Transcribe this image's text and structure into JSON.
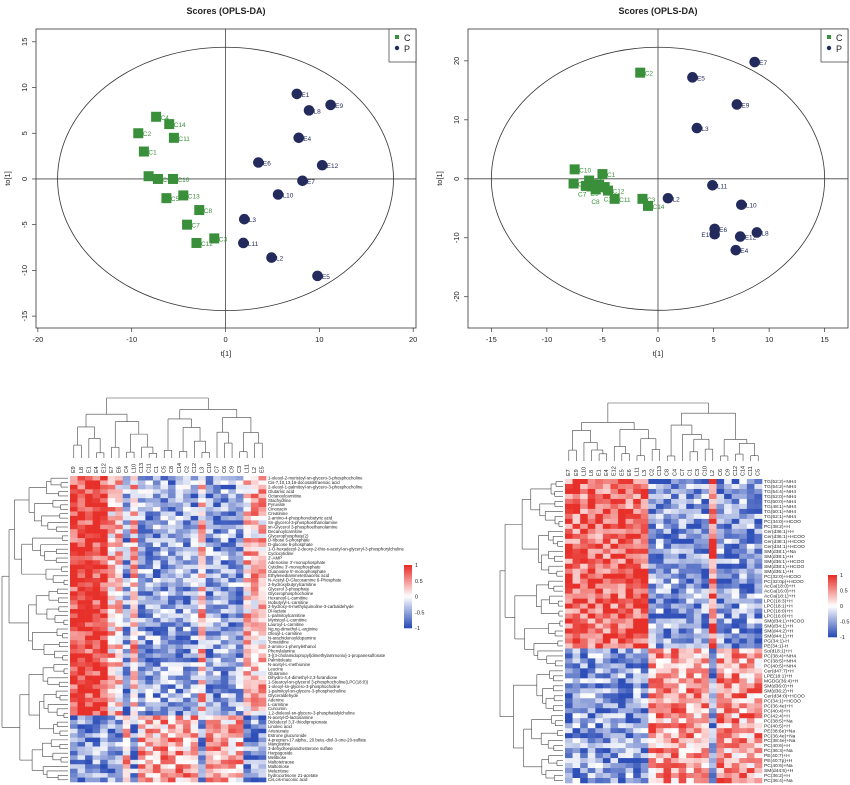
{
  "colors": {
    "C": "#3a8f3a",
    "P": "#232a5c",
    "heat_low": "#2e4fb8",
    "heat_mid": "#ffffff",
    "heat_high": "#e8302a",
    "axis": "#333333"
  },
  "chart_data": [
    {
      "type": "scatter",
      "title": "Scores (OPLS-DA)",
      "xlabel": "t[1]",
      "ylabel": "to[1]",
      "xlim": [
        -20.2,
        20.3
      ],
      "ylim": [
        -16.3,
        16.4
      ],
      "xticks": [
        "-20",
        "-10",
        "0",
        "10",
        "20"
      ],
      "xtick_values": [
        -20,
        -10,
        0,
        10,
        20
      ],
      "yticks": [
        "-15",
        "-10",
        "-5",
        "0",
        "5",
        "10",
        "15"
      ],
      "ytick_values": [
        -15,
        -10,
        -5,
        0,
        5,
        10,
        15
      ],
      "ellipse": {
        "rx": 17.9,
        "ry": 14.4
      },
      "legend": {
        "position": "top-right",
        "entries": [
          "C",
          "P"
        ]
      },
      "series": [
        {
          "name": "C",
          "marker": "square",
          "points": [
            {
              "label": "C4",
              "x": -7.4,
              "y": 6.8
            },
            {
              "label": "C14",
              "x": -6.0,
              "y": 6.0
            },
            {
              "label": "C2",
              "x": -9.3,
              "y": 5.0
            },
            {
              "label": "C11",
              "x": -5.5,
              "y": 4.5
            },
            {
              "label": "C1",
              "x": -8.7,
              "y": 3.0
            },
            {
              "label": "C6",
              "x": -8.2,
              "y": 0.3
            },
            {
              "label": "C9",
              "x": -7.2,
              "y": 0.0
            },
            {
              "label": "C10",
              "x": -5.6,
              "y": 0.0
            },
            {
              "label": "C13",
              "x": -4.5,
              "y": -1.8
            },
            {
              "label": "C5",
              "x": -6.3,
              "y": -2.1
            },
            {
              "label": "C8",
              "x": -2.8,
              "y": -3.4
            },
            {
              "label": "C7",
              "x": -4.1,
              "y": -5.0
            },
            {
              "label": "C3",
              "x": -1.2,
              "y": -6.5
            },
            {
              "label": "C12",
              "x": -3.1,
              "y": -7.0
            }
          ]
        },
        {
          "name": "P",
          "marker": "circle",
          "points": [
            {
              "label": "E1",
              "x": 7.6,
              "y": 9.3
            },
            {
              "label": "E9",
              "x": 11.2,
              "y": 8.1
            },
            {
              "label": "L8",
              "x": 8.9,
              "y": 7.5
            },
            {
              "label": "E4",
              "x": 7.8,
              "y": 4.5
            },
            {
              "label": "E6",
              "x": 3.5,
              "y": 1.8
            },
            {
              "label": "E12",
              "x": 10.3,
              "y": 1.5
            },
            {
              "label": "E7",
              "x": 8.2,
              "y": -0.2
            },
            {
              "label": "L10",
              "x": 5.6,
              "y": -1.7
            },
            {
              "label": "L3",
              "x": 2.0,
              "y": -4.4
            },
            {
              "label": "L11",
              "x": 1.9,
              "y": -7.0
            },
            {
              "label": "L2",
              "x": 4.9,
              "y": -8.6
            },
            {
              "label": "E5",
              "x": 9.8,
              "y": -10.6
            }
          ]
        }
      ]
    },
    {
      "type": "scatter",
      "title": "Scores (OPLS-DA)",
      "xlabel": "t[1]",
      "ylabel": "to[1]",
      "xlim": [
        -17.1,
        17.1
      ],
      "ylim": [
        -25.3,
        25.4
      ],
      "xticks": [
        "-15",
        "-10",
        "-5",
        "0",
        "5",
        "10",
        "15"
      ],
      "xtick_values": [
        -15,
        -10,
        -5,
        0,
        5,
        10,
        15
      ],
      "yticks": [
        "-20",
        "-10",
        "0",
        "10",
        "20"
      ],
      "ytick_values": [
        -20,
        -10,
        0,
        10,
        20
      ],
      "ellipse": {
        "rx": 15.0,
        "ry": 22.3
      },
      "legend": {
        "position": "top-right",
        "entries": [
          "C",
          "P"
        ]
      },
      "series": [
        {
          "name": "C",
          "marker": "square",
          "points": [
            {
              "label": "C2",
              "x": -1.6,
              "y": 18.0
            },
            {
              "label": "C10",
              "x": -7.5,
              "y": 1.6
            },
            {
              "label": "C1",
              "x": -5.0,
              "y": 0.8
            },
            {
              "label": "C5",
              "x": -7.6,
              "y": -0.8
            },
            {
              "label": "C4",
              "x": -6.2,
              "y": -0.3
            },
            {
              "label": "C9",
              "x": -6.5,
              "y": -1.2
            },
            {
              "label": "C7",
              "x": -6.0,
              "y": -1.3
            },
            {
              "label": "C6",
              "x": -5.6,
              "y": -1.8
            },
            {
              "label": "C13",
              "x": -5.3,
              "y": -1.0
            },
            {
              "label": "C12",
              "x": -4.5,
              "y": -2.0
            },
            {
              "label": "C11",
              "x": -3.9,
              "y": -3.4
            },
            {
              "label": "C3",
              "x": -1.4,
              "y": -3.4
            },
            {
              "label": "C14",
              "x": -0.9,
              "y": -4.6
            },
            {
              "label": "C8",
              "x": -4.8,
              "y": -1.4
            }
          ]
        },
        {
          "name": "P",
          "marker": "circle",
          "points": [
            {
              "label": "E7",
              "x": 8.7,
              "y": 19.8
            },
            {
              "label": "E5",
              "x": 3.1,
              "y": 17.2
            },
            {
              "label": "E9",
              "x": 7.1,
              "y": 12.6
            },
            {
              "label": "L3",
              "x": 3.5,
              "y": 8.6
            },
            {
              "label": "L11",
              "x": 4.9,
              "y": -1.1
            },
            {
              "label": "L2",
              "x": 0.9,
              "y": -3.3
            },
            {
              "label": "L10",
              "x": 7.5,
              "y": -4.4
            },
            {
              "label": "E6",
              "x": 5.1,
              "y": -8.5
            },
            {
              "label": "E1",
              "x": 5.1,
              "y": -9.4
            },
            {
              "label": "E12",
              "x": 7.4,
              "y": -9.8
            },
            {
              "label": "L8",
              "x": 8.9,
              "y": -9.1
            },
            {
              "label": "E4",
              "x": 7.0,
              "y": -12.1
            }
          ]
        }
      ]
    },
    {
      "type": "heatmap",
      "value_range": [
        -1,
        1
      ],
      "legend_ticks": [
        "1",
        "0.5",
        "0",
        "-0.5",
        "-1"
      ],
      "legend_tick_values": [
        1,
        0.5,
        0,
        -0.5,
        -1
      ],
      "columns": [
        "E9",
        "L8",
        "E1",
        "E4",
        "E12",
        "E7",
        "E6",
        "C4",
        "L10",
        "C13",
        "C11",
        "C1",
        "C5",
        "C8",
        "C14",
        "C2",
        "C12",
        "L3",
        "C10",
        "C7",
        "C6",
        "C9",
        "C3",
        "L11",
        "L2",
        "E5"
      ],
      "rows": [
        "1-oleoyl-2-myristoyl-sn-glycero-3-phosphocholine",
        "Cis-7,10,13,16-docosatetraenoic acid",
        "2-oleoyl-1-palmitoyl-sn-glycero-3-phosphocholine",
        "Glutamic acid",
        "Octanoylcarnitine",
        "Stachydrine",
        "Pyruvate",
        "Cinoxacin",
        "Creatinine",
        "2-amino-4-phosphonobutyric acid",
        "Sn-glycerol-3-phosphoethanolamine",
        "sn-Glycerol 3-phosphoethanolamine",
        "Decanoylcarnitine",
        "Glycerophosphate(2)",
        "D-ribose 5-phosphate",
        "D-glucose 6-phosphate",
        "1-O-hexadecyl-2-deoxy-2-thio-s-acetyl-sn-glyceryl-3-phosphorylcholine",
        "Cyclocytidine",
        "2'-AMP",
        "Adenosine 3'-monophosphate",
        "Cytidine 3'-monophosphate",
        "Guanosine 5'-monophosphate",
        "Ethylenediaminetetraacetic acid",
        "N-Acetyl-D-Glucosamine 6-Phosphate",
        "2-hydroxybutyrylcarnitine",
        "Glycerol 3-phosphate",
        "Glycerophosphocholine",
        "Hexanoyl-L-carnitine",
        "Isobutyryl-L-carnitine",
        "2-hydroxy-6-methylquinoline-3-carbaldehyde",
        "Dl-lactate",
        "L-palmitoylcarnitine",
        "Myristoyl-L-carnitine",
        "Lauroyl-L-carnitine",
        "Ng,ng-dimethyl-L-arginine",
        "Oleoyl-L-carnitine",
        "N-arachidonoyldopamine",
        "Tomatidine",
        "2-amino-1-phenylethanol",
        "Phenylalanine",
        "3-[(3-cholamidopropyl)dimethylammonio]-1-propanesulfonate",
        "Palmitoleate",
        "N-acetyl-L-methionine",
        "Leucine",
        "Glutamine",
        "Dihydro-4,4-dimethyl-2,3-furandione",
        "1-Stearoyl-sn-glycerol 3-phosphocholine(LPC(18:0))",
        "1-oleoyl-sn-glycero-3-phosphocholine",
        "1-palmitoyl-sn-glycero-3-phosphocholine",
        "Glyceraldehyde",
        "Adenine",
        "L-carnitine",
        "Curcumin",
        "1,2-dioleoyl-sn-glycero-3-phosphatidylcholine",
        "N-acetyl-D-lactosamine",
        "Didodecyl 3,3'-thiodipropionate",
        "Linoleic acid",
        "Artesunate",
        "Estrone glucuronide",
        "4-pregnen-17.alpha., 20.beta.-diol-3-one-20-sulfate",
        "Mangostine",
        "3-dehydroepiandrosterone sulfate",
        "Harpagoside",
        "Melibiose",
        "Maltotetraose",
        "Maltotriose",
        "Melezitose",
        "hydrocortisone 21-acetate",
        "Cis,cis-muconic acid"
      ]
    },
    {
      "type": "heatmap",
      "value_range": [
        -1,
        1
      ],
      "legend_ticks": [
        "1",
        "0.5",
        "0",
        "-0.5",
        "-1"
      ],
      "legend_tick_values": [
        1,
        0.5,
        0,
        -0.5,
        -1
      ],
      "columns": [
        "E7",
        "E9",
        "L10",
        "L8",
        "E1",
        "E4",
        "E12",
        "E5",
        "E6",
        "L11",
        "L3",
        "C2",
        "C13",
        "C8",
        "C4",
        "C7",
        "C1",
        "C3",
        "C10",
        "L2",
        "C6",
        "C9",
        "C12",
        "C14",
        "C11",
        "C5"
      ],
      "rows": [
        "TG(52:2)+NH4",
        "TG(54:2)+NH4",
        "TG(54:4)+NH4",
        "TG(52:0)+NH4",
        "TG(50:0)+NH4",
        "TG(48:1)+NH4",
        "TG(50:1)+NH4",
        "TG(52:1)+NH4",
        "PC(34:0)+HCOO",
        "PC(38:2)+H",
        "Cer(d36:1)+H",
        "Cer(d36:1)+HCOO",
        "Cer(d38:1)+HCOO",
        "Cer(d34:1)+HCOO",
        "SM(d38:1)+Na",
        "SM(d38:1)+H",
        "SM(d36:1)+HCOO",
        "SM(d38:1)+HCOO",
        "SM(d36:1)+H",
        "PC(32:0)+HCOO",
        "PC(32:0p)+HCOO",
        "AcCa(18:0)+H",
        "AcCa(16:0)+H",
        "AcCa(18:1)+H",
        "LPC(18:3)+H",
        "LPC(18:1)+H",
        "LPC(18:0)+H",
        "LPC(16:0)+H",
        "SM(d34:1)+HCOO",
        "SM(d34:1)+H",
        "SM(d44:2)+H",
        "SM(d44:1)+H",
        "PG(34:1)-H",
        "PE(34:1)-H",
        "So(d18:1)+H",
        "PC(38:4)+NH4",
        "PC(38:5)+NH4",
        "PC(40:5)+NH4",
        "Cer(d47:7)+H",
        "LPE(18:1)+H",
        "MGDG(36:4)+H",
        "SM(d36:0)+H",
        "SM(d36:2)+H",
        "Cer(d34:0)+HCOO",
        "PC(34:1)+HCOO",
        "PC(36:4e)+H",
        "PC(40:4)+H",
        "PC(42:4)+H",
        "PC(38:5)+Na",
        "PC(40:5)+H",
        "PE(38:6e)+Na",
        "PC(36:4e)+Na",
        "PC(38:4e)+Na",
        "PC(40:6)+H",
        "PC(36:3)+Na",
        "PE(40:7)+H",
        "PE(40:7p)+H",
        "PC(40:6)+Na",
        "SM(d44:5)+H",
        "PC(36:2)+H",
        "PC(36:4)+Na"
      ]
    }
  ]
}
